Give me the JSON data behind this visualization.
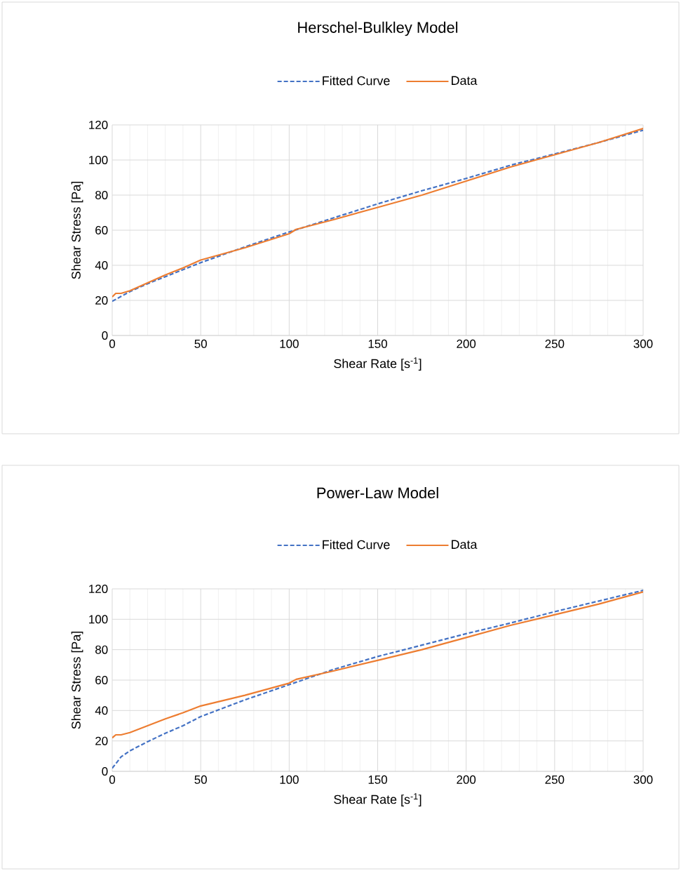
{
  "chart_data": [
    {
      "type": "line",
      "title": "Herschel-Bulkley Model",
      "xlabel": "Shear Rate [s$^{-1}$]",
      "ylabel": "Shear Stress [Pa]",
      "xlim": [
        0,
        300
      ],
      "ylim": [
        0,
        120
      ],
      "xticks": [
        0,
        50,
        100,
        150,
        200,
        250,
        300
      ],
      "yticks": [
        0,
        20,
        40,
        60,
        80,
        100,
        120
      ],
      "grid": true,
      "legend": "top",
      "marker": "none",
      "series": [
        {
          "name": "Fitted Curve",
          "color": "#4472c4",
          "line_style": "dashed",
          "x": [
            0,
            10,
            20,
            30,
            40,
            50,
            75,
            100,
            125,
            150,
            175,
            200,
            225,
            250,
            275,
            300
          ],
          "values": [
            19.5,
            25,
            29.5,
            33.5,
            37.5,
            41.5,
            50.5,
            59,
            67,
            75,
            82.5,
            89.5,
            97,
            103.5,
            110,
            117
          ]
        },
        {
          "name": "Data",
          "color": "#ed7d31",
          "line_style": "solid",
          "x": [
            0,
            2,
            5,
            10,
            20,
            30,
            40,
            50,
            75,
            100,
            104,
            125,
            150,
            175,
            200,
            225,
            250,
            275,
            300
          ],
          "values": [
            22,
            24,
            24,
            25.5,
            30,
            34.5,
            38.5,
            43,
            50,
            58,
            60.5,
            66,
            73,
            80,
            88,
            96,
            103,
            110,
            118
          ]
        }
      ]
    },
    {
      "type": "line",
      "title": "Power-Law Model",
      "xlabel": "Shear Rate [s$^{-1}$]",
      "ylabel": "Shear Stress [Pa]",
      "xlim": [
        0,
        300
      ],
      "ylim": [
        0,
        120
      ],
      "xticks": [
        0,
        50,
        100,
        150,
        200,
        250,
        300
      ],
      "yticks": [
        0,
        20,
        40,
        60,
        80,
        100,
        120
      ],
      "grid": true,
      "legend": "top",
      "marker": "none",
      "series": [
        {
          "name": "Fitted Curve",
          "color": "#4472c4",
          "line_style": "dashed",
          "x": [
            0,
            5,
            10,
            20,
            30,
            40,
            50,
            75,
            100,
            125,
            150,
            175,
            200,
            225,
            250,
            275,
            300
          ],
          "values": [
            2,
            9.5,
            13.5,
            19.5,
            25,
            30,
            36,
            47,
            57,
            67,
            75.5,
            83,
            90.5,
            97.5,
            105,
            112,
            119
          ]
        },
        {
          "name": "Data",
          "color": "#ed7d31",
          "line_style": "solid",
          "x": [
            0,
            2,
            5,
            10,
            20,
            30,
            40,
            50,
            75,
            100,
            104,
            125,
            150,
            175,
            200,
            225,
            250,
            275,
            300
          ],
          "values": [
            22,
            24,
            24,
            25.5,
            30,
            34.5,
            38.5,
            43,
            50,
            58,
            60.5,
            66,
            73,
            80,
            88,
            96,
            103,
            110,
            118
          ]
        }
      ]
    }
  ]
}
